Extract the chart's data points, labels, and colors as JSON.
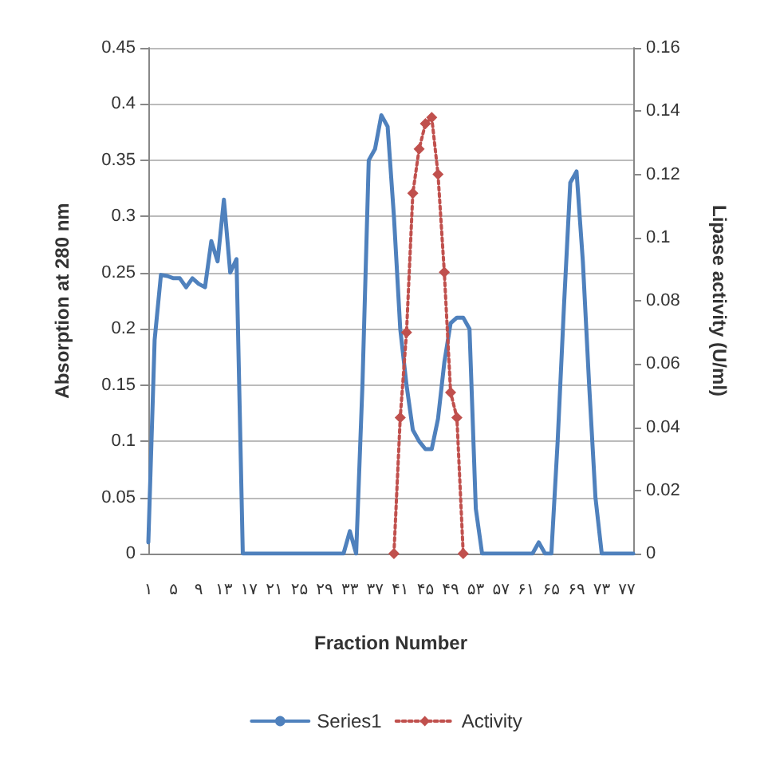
{
  "chart_data": {
    "type": "line",
    "xlabel": "Fraction Number",
    "ylabel": "Absorption at 280 nm",
    "y2label": "Lipase activity (U/ml)",
    "categories": [
      "۱",
      null,
      null,
      null,
      "۵",
      null,
      null,
      null,
      "۹",
      null,
      null,
      null,
      "۱۳",
      null,
      null,
      null,
      "۱۷",
      null,
      null,
      null,
      "۲۱",
      null,
      null,
      null,
      "۲۵",
      null,
      null,
      null,
      "۲۹",
      null,
      null,
      null,
      "۳۳",
      null,
      null,
      null,
      "۳۷",
      null,
      null,
      null,
      "۴۱",
      null,
      null,
      null,
      "۴۵",
      null,
      null,
      null,
      "۴۹",
      null,
      null,
      null,
      "۵۳",
      null,
      null,
      null,
      "۵۷",
      null,
      null,
      null,
      "۶۱",
      null,
      null,
      null,
      "۶۵",
      null,
      null,
      null,
      "۶۹",
      null,
      null,
      null,
      "۷۳",
      null,
      null,
      null,
      "۷۷",
      null
    ],
    "series": [
      {
        "name": "Series1",
        "color": "#4f81bd",
        "marker": "none",
        "line_style": "solid",
        "values": [
          0.01,
          0.19,
          0.248,
          0.247,
          0.245,
          0.245,
          0.237,
          0.245,
          0.24,
          0.237,
          0.278,
          0.26,
          0.315,
          0.25,
          0.262,
          0,
          0,
          0,
          0,
          0,
          0,
          0,
          0,
          0,
          0,
          0,
          0,
          0,
          0,
          0,
          0,
          0,
          0.02,
          0,
          0.15,
          0.35,
          0.36,
          0.39,
          0.38,
          0.3,
          0.2,
          0.15,
          0.11,
          0.1,
          0.093,
          0.093,
          0.12,
          0.17,
          0.205,
          0.21,
          0.21,
          0.2,
          0.04,
          0,
          0,
          0,
          0,
          0,
          0,
          0,
          0,
          0,
          0.01,
          0,
          0,
          0.1,
          0.22,
          0.33,
          0.34,
          0.26,
          0.15,
          0.05,
          0,
          0,
          0,
          0,
          0,
          0
        ]
      },
      {
        "name": "Activity",
        "color": "#c0504d",
        "marker": "diamond",
        "line_style": "dotted",
        "axis": "y2",
        "values": [
          null,
          null,
          null,
          null,
          null,
          null,
          null,
          null,
          null,
          null,
          null,
          null,
          null,
          null,
          null,
          null,
          null,
          null,
          null,
          null,
          null,
          null,
          null,
          null,
          null,
          null,
          null,
          null,
          null,
          null,
          null,
          null,
          null,
          null,
          null,
          null,
          null,
          null,
          null,
          0,
          0.043,
          0.07,
          0.114,
          0.128,
          0.136,
          0.138,
          0.12,
          0.089,
          0.051,
          0.043,
          0,
          null,
          null,
          null,
          null,
          null,
          null,
          null,
          null,
          null,
          null,
          null,
          null,
          null,
          null,
          null,
          null,
          null,
          null,
          null,
          null,
          null,
          null,
          null,
          null,
          null,
          null,
          null
        ]
      }
    ],
    "ylim": [
      0,
      0.45
    ],
    "yticks": [
      0,
      0.05,
      0.1,
      0.15,
      0.2,
      0.25,
      0.3,
      0.35,
      0.4,
      0.45
    ],
    "y2lim": [
      0,
      0.16
    ],
    "y2ticks": [
      0,
      0.02,
      0.04,
      0.06,
      0.08,
      0.1,
      0.12,
      0.14,
      0.16
    ],
    "grid": "y",
    "legend": "bottom"
  }
}
